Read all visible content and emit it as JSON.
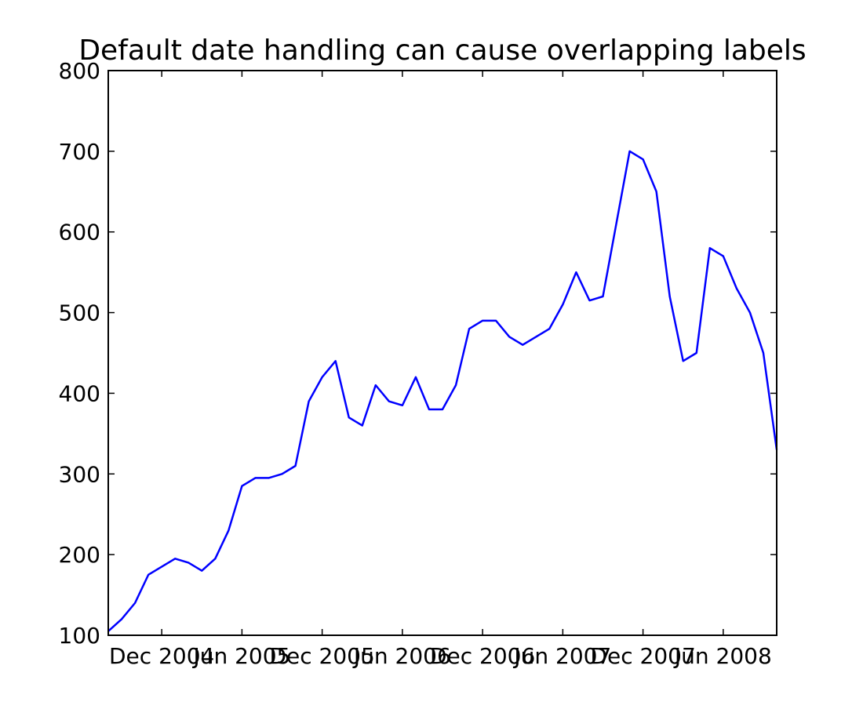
{
  "chart_data": {
    "type": "line",
    "title": "Default date handling can cause overlapping labels",
    "x": [
      "2004-08",
      "2004-09",
      "2004-10",
      "2004-11",
      "2004-12",
      "2005-01",
      "2005-02",
      "2005-03",
      "2005-04",
      "2005-05",
      "2005-06",
      "2005-07",
      "2005-08",
      "2005-09",
      "2005-10",
      "2005-11",
      "2005-12",
      "2006-01",
      "2006-02",
      "2006-03",
      "2006-04",
      "2006-05",
      "2006-06",
      "2006-07",
      "2006-08",
      "2006-09",
      "2006-10",
      "2006-11",
      "2006-12",
      "2007-01",
      "2007-02",
      "2007-03",
      "2007-04",
      "2007-05",
      "2007-06",
      "2007-07",
      "2007-08",
      "2007-09",
      "2007-10",
      "2007-11",
      "2007-12",
      "2008-01",
      "2008-02",
      "2008-03",
      "2008-04",
      "2008-05",
      "2008-06",
      "2008-07",
      "2008-08",
      "2008-09",
      "2008-10"
    ],
    "series": [
      {
        "color": "#0000ff",
        "values": [
          105,
          120,
          140,
          175,
          185,
          195,
          190,
          180,
          195,
          230,
          285,
          295,
          295,
          300,
          310,
          390,
          420,
          440,
          370,
          360,
          410,
          390,
          385,
          420,
          380,
          380,
          410,
          480,
          490,
          490,
          470,
          460,
          470,
          480,
          510,
          550,
          515,
          520,
          610,
          700,
          690,
          650,
          520,
          440,
          450,
          580,
          570,
          530,
          500,
          450,
          330
        ]
      }
    ],
    "xlim": [
      "2004-08",
      "2008-10"
    ],
    "xticks": [
      {
        "value": "2004-12",
        "label": "Dec 2004"
      },
      {
        "value": "2005-06",
        "label": "Jun 2005"
      },
      {
        "value": "2005-12",
        "label": "Dec 2005"
      },
      {
        "value": "2006-06",
        "label": "Jun 2006"
      },
      {
        "value": "2006-12",
        "label": "Dec 2006"
      },
      {
        "value": "2007-06",
        "label": "Jun 2007"
      },
      {
        "value": "2007-12",
        "label": "Dec 2007"
      },
      {
        "value": "2008-06",
        "label": "Jun 2008"
      }
    ],
    "ylim": [
      100,
      800
    ],
    "yticks": [
      100,
      200,
      300,
      400,
      500,
      600,
      700,
      800
    ],
    "grid": false
  }
}
